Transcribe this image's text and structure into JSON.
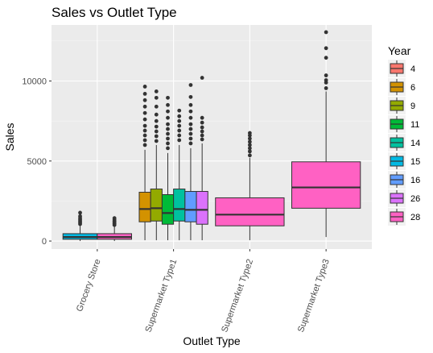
{
  "chart_data": {
    "type": "boxplot",
    "title": "Sales vs Outlet Type",
    "xlabel": "Outlet Type",
    "ylabel": "Sales",
    "ylim": [
      -500,
      13500
    ],
    "yticks": [
      0,
      5000,
      10000
    ],
    "grid": true,
    "legend_position": "right",
    "categories": [
      "Grocery Store",
      "Supermarket Type1",
      "Supermarket Type2",
      "Supermarket Type3"
    ],
    "legend": {
      "title": "Year",
      "entries": [
        {
          "label": "4",
          "color": "#F8766D"
        },
        {
          "label": "6",
          "color": "#D39200"
        },
        {
          "label": "9",
          "color": "#93AA00"
        },
        {
          "label": "11",
          "color": "#00BA38"
        },
        {
          "label": "14",
          "color": "#00C19F"
        },
        {
          "label": "15",
          "color": "#00B9E3"
        },
        {
          "label": "16",
          "color": "#619CFF"
        },
        {
          "label": "26",
          "color": "#DB72FB"
        },
        {
          "label": "28",
          "color": "#FF61C3"
        }
      ]
    },
    "boxes": [
      {
        "category": "Grocery Store",
        "year": "15",
        "min": 0,
        "q1": 110,
        "median": 250,
        "q3": 460,
        "max": 1000,
        "outliers": [
          1060,
          1150,
          1240,
          1330,
          1430,
          1550,
          1770
        ]
      },
      {
        "category": "Grocery Store",
        "year": "28",
        "min": 0,
        "q1": 110,
        "median": 250,
        "q3": 460,
        "max": 950,
        "outliers": [
          1000,
          1080,
          1160,
          1230,
          1320,
          1430
        ]
      },
      {
        "category": "Supermarket Type1",
        "year": "6",
        "min": 50,
        "q1": 1200,
        "median": 2000,
        "q3": 3050,
        "max": 5700,
        "outliers": [
          6000,
          6300,
          6600,
          6900,
          7200,
          7600,
          8000,
          8400,
          8800,
          9200,
          9650
        ]
      },
      {
        "category": "Supermarket Type1",
        "year": "9",
        "min": 50,
        "q1": 1250,
        "median": 2050,
        "q3": 3250,
        "max": 6000,
        "outliers": [
          6250,
          6550,
          6850,
          7150,
          7500,
          7900,
          8400,
          8950,
          9350
        ]
      },
      {
        "category": "Supermarket Type1",
        "year": "11",
        "min": 50,
        "q1": 1050,
        "median": 1750,
        "q3": 2900,
        "max": 5500,
        "outliers": [
          5800,
          6100,
          6400,
          6700,
          7000,
          7300,
          7700,
          8100,
          8500,
          8950
        ]
      },
      {
        "category": "Supermarket Type1",
        "year": "14",
        "min": 50,
        "q1": 1250,
        "median": 2000,
        "q3": 3250,
        "max": 6000,
        "outliers": [
          6300,
          6600,
          6900,
          7200,
          7500,
          7800,
          8150
        ]
      },
      {
        "category": "Supermarket Type1",
        "year": "16",
        "min": 50,
        "q1": 1200,
        "median": 1950,
        "q3": 3100,
        "max": 5800,
        "outliers": [
          6100,
          6400,
          6700,
          7000,
          7300,
          7700,
          8100,
          8500,
          9000,
          9750
        ]
      },
      {
        "category": "Supermarket Type1",
        "year": "26",
        "min": 50,
        "q1": 1050,
        "median": 1950,
        "q3": 3100,
        "max": 6100,
        "outliers": [
          6350,
          6600,
          6850,
          7100,
          7400,
          7700,
          10200
        ]
      },
      {
        "category": "Supermarket Type2",
        "year": "28",
        "min": 50,
        "q1": 950,
        "median": 1650,
        "q3": 2700,
        "max": 5200,
        "outliers": [
          5350,
          5600,
          5800,
          6000,
          6200,
          6400,
          6600,
          6750
        ]
      },
      {
        "category": "Supermarket Type3",
        "year": "28",
        "min": 250,
        "q1": 2050,
        "median": 3350,
        "q3": 4950,
        "max": 9350,
        "outliers": [
          9550,
          9900,
          10050,
          10350,
          11450,
          12050,
          13050
        ]
      }
    ]
  }
}
